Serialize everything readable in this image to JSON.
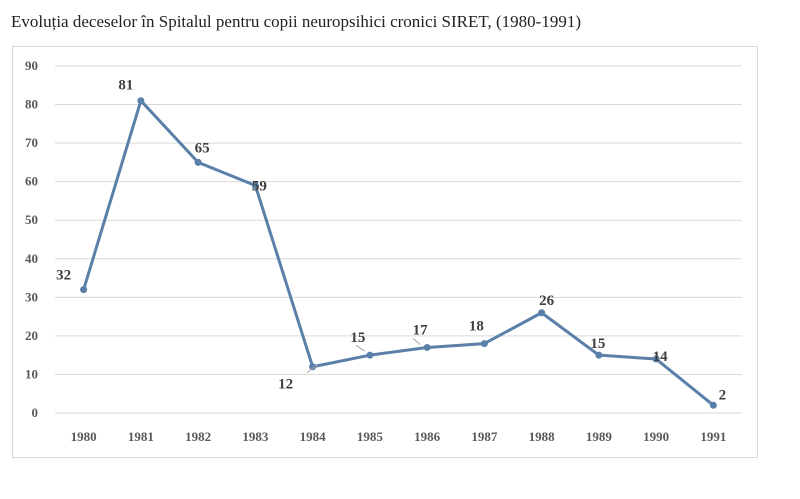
{
  "chart_data": {
    "type": "line",
    "title": "Evoluția deceselor în Spitalul pentru copii neuropsihici cronici SIRET, (1980-1991)",
    "categories": [
      "1980",
      "1981",
      "1982",
      "1983",
      "1984",
      "1985",
      "1986",
      "1987",
      "1988",
      "1989",
      "1990",
      "1991"
    ],
    "series": [
      {
        "values": [
          32,
          81,
          65,
          59,
          12,
          15,
          17,
          18,
          26,
          15,
          14,
          2
        ],
        "color": "#5a7fa8"
      }
    ],
    "ylim": [
      0,
      90
    ],
    "yticks": [
      "0",
      "10",
      "20",
      "30",
      "40",
      "50",
      "60",
      "70",
      "80",
      "90"
    ],
    "grid": true,
    "legend": "none",
    "data_labels": [
      "32",
      "81",
      "65",
      "59",
      "12",
      "15",
      "17",
      "18",
      "26",
      "15",
      "14",
      "2"
    ]
  }
}
